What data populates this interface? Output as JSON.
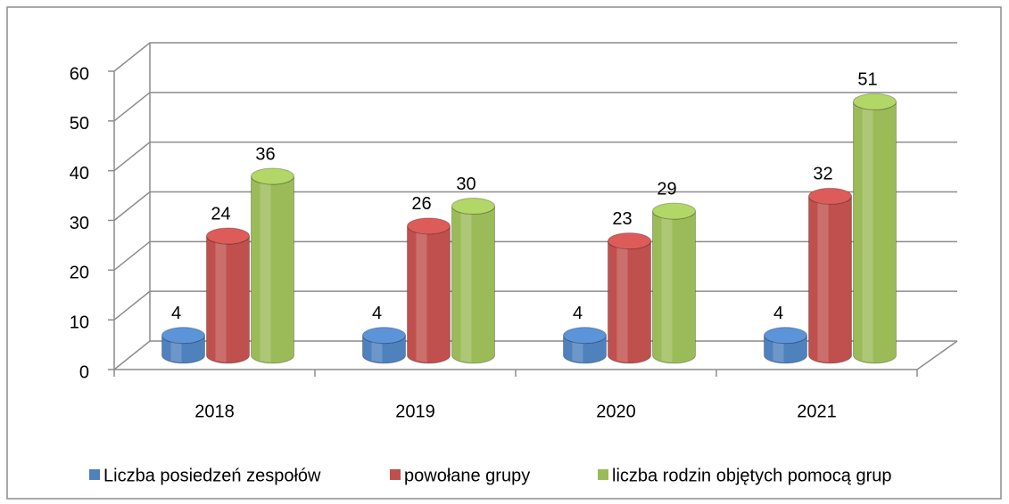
{
  "chart_data": {
    "type": "bar3d",
    "categories": [
      "2018",
      "2019",
      "2020",
      "2021"
    ],
    "series": [
      {
        "name": "Liczba posiedzeń zespołów",
        "color": "#4f81bd",
        "values": [
          4,
          4,
          4,
          4
        ]
      },
      {
        "name": "powołane grupy",
        "color": "#c0504d",
        "values": [
          24,
          26,
          23,
          32
        ]
      },
      {
        "name": "liczba rodzin objętych pomocą grup",
        "color": "#9bbb59",
        "values": [
          36,
          30,
          29,
          51
        ]
      }
    ],
    "ylim": [
      0,
      60
    ],
    "yticks": [
      0,
      10,
      20,
      30,
      40,
      50,
      60
    ],
    "grid": true,
    "legend": "bottom"
  }
}
